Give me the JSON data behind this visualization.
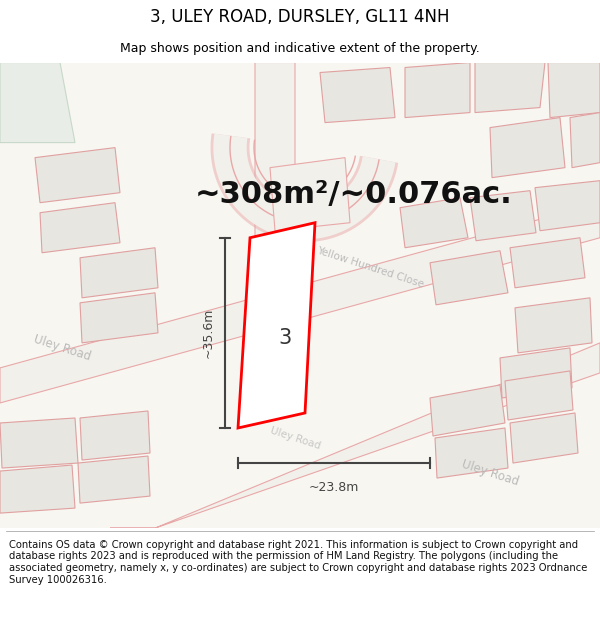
{
  "title": "3, ULEY ROAD, DURSLEY, GL11 4NH",
  "subtitle": "Map shows position and indicative extent of the property.",
  "footer": "Contains OS data © Crown copyright and database right 2021. This information is subject to Crown copyright and database rights 2023 and is reproduced with the permission of HM Land Registry. The polygons (including the associated geometry, namely x, y co-ordinates) are subject to Crown copyright and database rights 2023 Ordnance Survey 100026316.",
  "area_label": "~308m²/~0.076ac.",
  "width_label": "~23.8m",
  "height_label": "~35.6m",
  "number_label": "3",
  "map_bg": "#f7f6f1",
  "road_fill": "#f2f0eb",
  "road_stroke": "#e8a8a8",
  "building_fill": "#e8e6e0",
  "building_stroke": "#e0a0a0",
  "highlight_fill": "#ffffff",
  "highlight_stroke": "#ff0000",
  "dim_color": "#444444",
  "road_label_color": "#bbbbbb",
  "green_corner": "#e8ede8",
  "title_fontsize": 12,
  "subtitle_fontsize": 9,
  "footer_fontsize": 7.2,
  "area_fontsize": 22
}
